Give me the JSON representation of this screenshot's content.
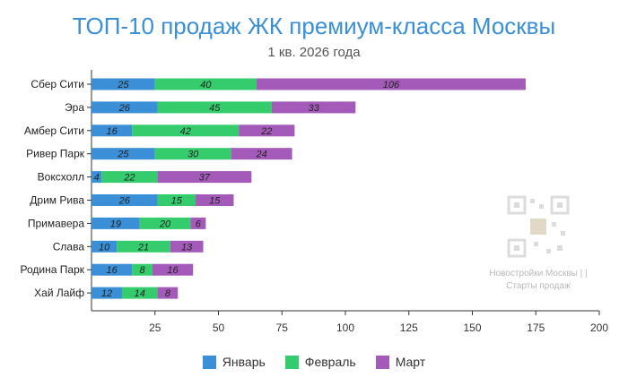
{
  "chart_data": {
    "type": "bar",
    "orientation": "horizontal",
    "stacked": true,
    "title": "ТОП-10 продаж ЖК премиум-класса Москвы",
    "subtitle": "1 кв. 2026 года",
    "categories": [
      "Сбер Сити",
      "Эра",
      "Амбер Сити",
      "Ривер Парк",
      "Воксхолл",
      "Дрим Рива",
      "Примавера",
      "Слава",
      "Родина Парк",
      "Хай Лайф"
    ],
    "series": [
      {
        "name": "Январь",
        "color": "#3a8fd6",
        "values": [
          25,
          26,
          16,
          25,
          4,
          26,
          19,
          10,
          16,
          12
        ]
      },
      {
        "name": "Февраль",
        "color": "#35cc6d",
        "values": [
          40,
          45,
          42,
          30,
          22,
          15,
          20,
          21,
          8,
          14
        ]
      },
      {
        "name": "Март",
        "color": "#a35ab8",
        "values": [
          106,
          33,
          22,
          24,
          37,
          15,
          6,
          13,
          16,
          8
        ]
      }
    ],
    "xlim": [
      0,
      200
    ],
    "xticks": [
      25,
      50,
      75,
      100,
      125,
      150,
      175,
      200
    ],
    "grid": false,
    "legend_position": "bottom"
  },
  "watermark": {
    "line1": "Новостройки Москвы | |",
    "line2": "Старты продаж",
    "icon": "qr-code-icon"
  }
}
